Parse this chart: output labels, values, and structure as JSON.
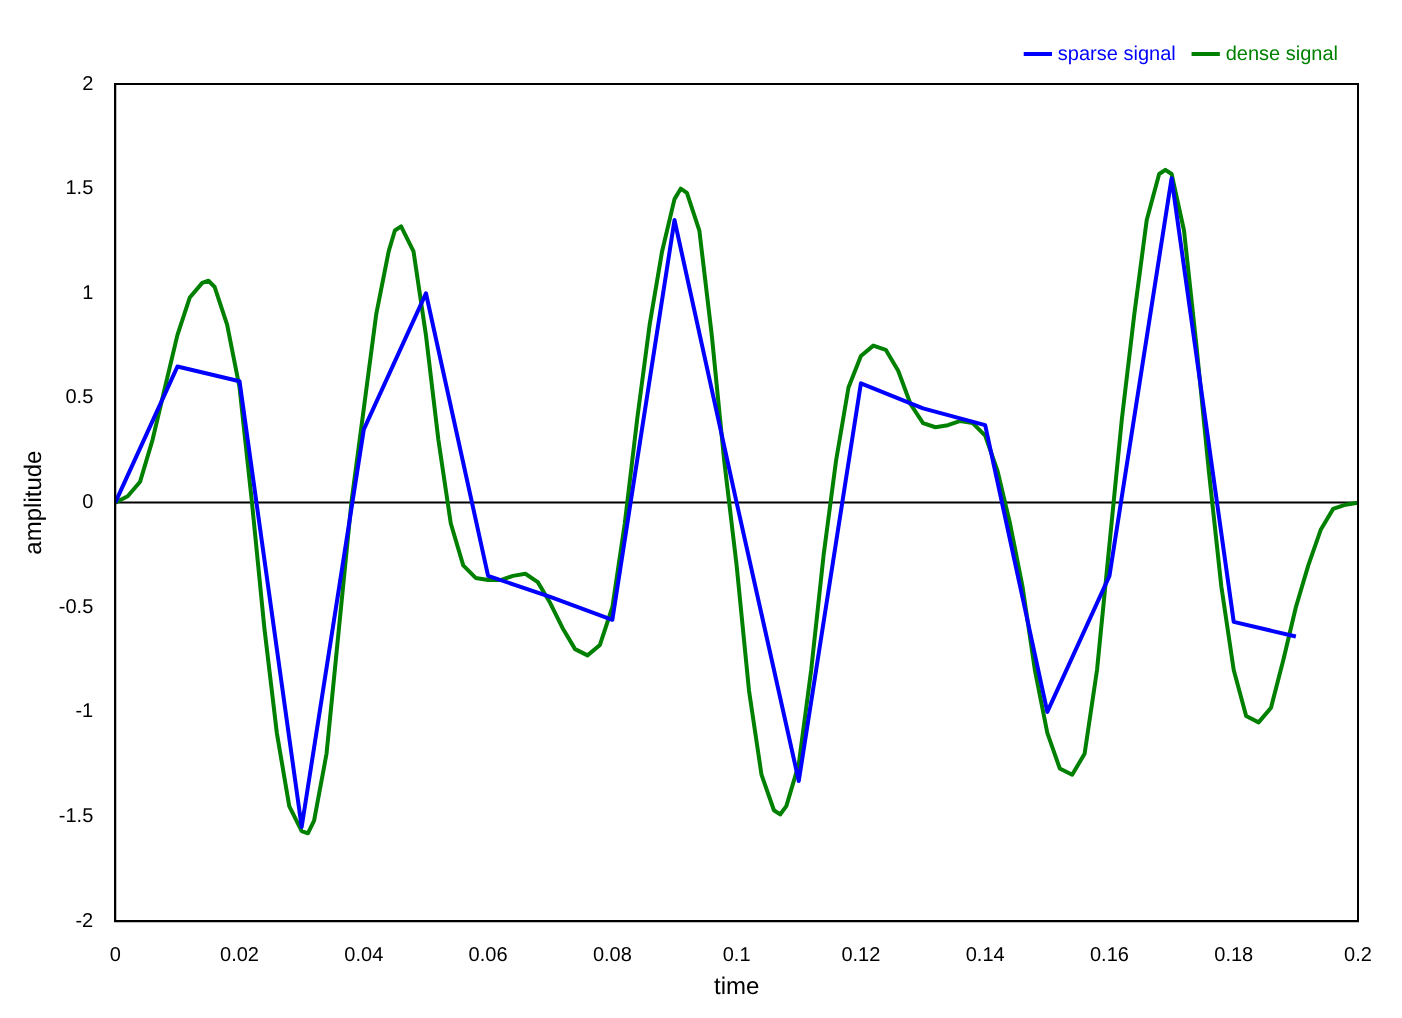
{
  "chart_data": {
    "type": "line",
    "xlabel": "time",
    "ylabel": "amplitude",
    "legend": "top right",
    "grid": false,
    "marker": "none",
    "line_style": "solid",
    "xlim": [
      0,
      0.2
    ],
    "xticks": [
      0,
      0.02,
      0.04,
      0.06,
      0.08,
      0.1,
      0.12,
      0.14,
      0.16,
      0.18,
      0.2
    ],
    "ylim": [
      -2,
      2
    ],
    "yticks": [
      -2,
      -1.5,
      -1,
      -0.5,
      0,
      0.5,
      1,
      1.5,
      2
    ],
    "ref_lines": [
      {
        "axis": "y",
        "value": 0,
        "color": "#000000"
      }
    ],
    "series": [
      {
        "name": "sparse signal",
        "color": "#0000ff",
        "x": [
          0,
          0.01,
          0.02,
          0.03,
          0.04,
          0.05,
          0.06,
          0.07,
          0.08,
          0.09,
          0.1,
          0.11,
          0.12,
          0.13,
          0.14,
          0.15,
          0.16,
          0.17,
          0.18,
          0.19
        ],
        "values": [
          0,
          0.65,
          0.58,
          -1.55,
          0.35,
          1.0,
          -0.35,
          -0.45,
          -0.56,
          1.35,
          0,
          -1.33,
          0.57,
          0.45,
          0.37,
          -1.0,
          -0.35,
          1.55,
          -0.57,
          -0.64
        ]
      },
      {
        "name": "dense signal",
        "color": "#008000",
        "x": [
          0,
          0.002,
          0.004,
          0.006,
          0.008,
          0.01,
          0.012,
          0.014,
          0.015,
          0.016,
          0.018,
          0.02,
          0.022,
          0.024,
          0.026,
          0.028,
          0.03,
          0.031,
          0.032,
          0.034,
          0.036,
          0.038,
          0.04,
          0.042,
          0.044,
          0.045,
          0.046,
          0.048,
          0.05,
          0.052,
          0.054,
          0.056,
          0.058,
          0.06,
          0.062,
          0.064,
          0.066,
          0.068,
          0.07,
          0.072,
          0.074,
          0.076,
          0.078,
          0.08,
          0.082,
          0.084,
          0.086,
          0.088,
          0.09,
          0.091,
          0.092,
          0.094,
          0.096,
          0.098,
          0.1,
          0.102,
          0.104,
          0.106,
          0.107,
          0.108,
          0.11,
          0.112,
          0.114,
          0.116,
          0.118,
          0.12,
          0.122,
          0.124,
          0.126,
          0.128,
          0.13,
          0.132,
          0.134,
          0.136,
          0.138,
          0.14,
          0.142,
          0.144,
          0.146,
          0.148,
          0.15,
          0.152,
          0.154,
          0.156,
          0.158,
          0.16,
          0.162,
          0.164,
          0.166,
          0.168,
          0.169,
          0.17,
          0.172,
          0.174,
          0.176,
          0.178,
          0.18,
          0.182,
          0.184,
          0.186,
          0.188,
          0.19,
          0.192,
          0.194,
          0.196,
          0.198,
          0.2
        ],
        "values": [
          0,
          0.03,
          0.1,
          0.3,
          0.55,
          0.8,
          0.98,
          1.05,
          1.06,
          1.03,
          0.85,
          0.55,
          0,
          -0.6,
          -1.1,
          -1.45,
          -1.57,
          -1.58,
          -1.52,
          -1.2,
          -0.6,
          0,
          0.45,
          0.9,
          1.2,
          1.3,
          1.32,
          1.2,
          0.8,
          0.3,
          -0.1,
          -0.3,
          -0.36,
          -0.37,
          -0.37,
          -0.35,
          -0.34,
          -0.38,
          -0.48,
          -0.6,
          -0.7,
          -0.73,
          -0.68,
          -0.5,
          -0.1,
          0.4,
          0.85,
          1.2,
          1.45,
          1.5,
          1.48,
          1.3,
          0.8,
          0.2,
          -0.3,
          -0.9,
          -1.3,
          -1.47,
          -1.49,
          -1.45,
          -1.25,
          -0.8,
          -0.25,
          0.2,
          0.55,
          0.7,
          0.75,
          0.73,
          0.63,
          0.47,
          0.38,
          0.36,
          0.37,
          0.39,
          0.38,
          0.32,
          0.15,
          -0.1,
          -0.4,
          -0.8,
          -1.1,
          -1.27,
          -1.3,
          -1.2,
          -0.8,
          -0.2,
          0.4,
          0.9,
          1.35,
          1.57,
          1.59,
          1.57,
          1.3,
          0.75,
          0.15,
          -0.4,
          -0.8,
          -1.02,
          -1.05,
          -0.98,
          -0.75,
          -0.5,
          -0.3,
          -0.13,
          -0.03,
          -0.01,
          0
        ]
      }
    ]
  }
}
